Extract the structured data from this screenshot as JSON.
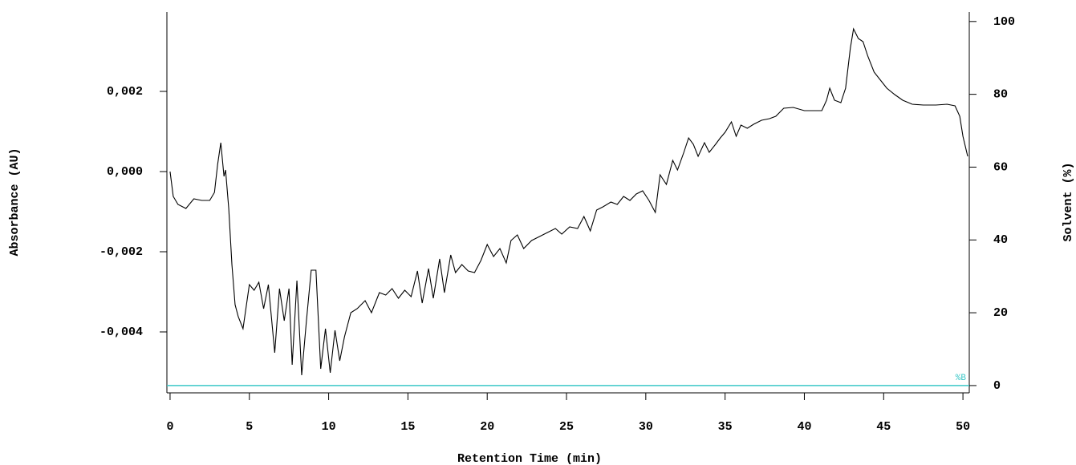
{
  "chart_data": {
    "type": "line",
    "xlabel": "Retention Time (min)",
    "ylabel": "Absorbance (AU)",
    "y2label": "Solvent (%)",
    "xlim": [
      -0.2,
      50.4
    ],
    "xticks": [
      0,
      5,
      10,
      15,
      20,
      25,
      30,
      35,
      40,
      45,
      50
    ],
    "ylim": [
      -0.00552,
      0.00398
    ],
    "yticks": [
      {
        "value": -0.004,
        "label": "-0,004"
      },
      {
        "value": -0.002,
        "label": "-0,002"
      },
      {
        "value": 0,
        "label": "0,000"
      },
      {
        "value": 0.002,
        "label": "0,002"
      }
    ],
    "y2lim": [
      -2,
      102.6
    ],
    "y2ticks": [
      0,
      20,
      40,
      60,
      80,
      100
    ],
    "grid": false,
    "series": [
      {
        "color": "#000000",
        "x": [
          0,
          0.2,
          0.5,
          1.0,
          1.5,
          2.0,
          2.5,
          2.8,
          3.0,
          3.2,
          3.4,
          3.5,
          3.7,
          3.9,
          4.1,
          4.3,
          4.6,
          5.0,
          5.3,
          5.6,
          5.9,
          6.2,
          6.6,
          6.9,
          7.2,
          7.5,
          7.7,
          8.0,
          8.3,
          8.6,
          8.9,
          9.2,
          9.5,
          9.8,
          10.1,
          10.4,
          10.7,
          11.0,
          11.4,
          11.8,
          12.3,
          12.7,
          13.2,
          13.6,
          14.0,
          14.4,
          14.8,
          15.2,
          15.6,
          15.9,
          16.3,
          16.6,
          17.0,
          17.3,
          17.7,
          18.0,
          18.4,
          18.8,
          19.2,
          19.6,
          20.0,
          20.4,
          20.8,
          21.2,
          21.5,
          21.9,
          22.3,
          22.8,
          23.3,
          23.8,
          24.3,
          24.7,
          25.2,
          25.7,
          26.1,
          26.5,
          26.9,
          27.3,
          27.8,
          28.2,
          28.6,
          29.0,
          29.4,
          29.8,
          30.2,
          30.6,
          30.9,
          31.3,
          31.7,
          32.0,
          32.4,
          32.7,
          33.0,
          33.3,
          33.7,
          34.0,
          34.4,
          34.7,
          35.0,
          35.4,
          35.7,
          36.0,
          36.4,
          36.8,
          37.3,
          37.8,
          38.2,
          38.7,
          39.3,
          40.0,
          40.6,
          41.1,
          41.4,
          41.6,
          41.9,
          42.3,
          42.6,
          42.9,
          43.1,
          43.4,
          43.7,
          44.0,
          44.4,
          44.8,
          45.2,
          45.7,
          46.2,
          46.8,
          47.5,
          48.3,
          49.0,
          49.5,
          49.8,
          50.0,
          50.3
        ],
        "values": [
          0,
          -0.00062,
          -0.00082,
          -0.00092,
          -0.00068,
          -0.00072,
          -0.00072,
          -0.00052,
          0.00018,
          0.00072,
          -0.00012,
          4e-05,
          -0.00092,
          -0.00232,
          -0.00332,
          -0.00362,
          -0.00392,
          -0.00282,
          -0.00296,
          -0.00276,
          -0.00342,
          -0.00282,
          -0.00452,
          -0.00292,
          -0.00372,
          -0.00292,
          -0.00482,
          -0.00272,
          -0.00508,
          -0.00372,
          -0.00246,
          -0.00246,
          -0.00492,
          -0.00392,
          -0.00502,
          -0.00396,
          -0.00472,
          -0.00412,
          -0.00352,
          -0.00342,
          -0.00322,
          -0.00352,
          -0.00302,
          -0.00308,
          -0.00292,
          -0.00316,
          -0.00296,
          -0.00312,
          -0.00248,
          -0.00328,
          -0.00242,
          -0.00316,
          -0.00218,
          -0.00302,
          -0.00208,
          -0.00252,
          -0.00232,
          -0.00248,
          -0.00252,
          -0.00222,
          -0.00182,
          -0.00212,
          -0.00192,
          -0.00228,
          -0.00172,
          -0.00158,
          -0.00192,
          -0.00172,
          -0.00162,
          -0.00152,
          -0.00142,
          -0.00156,
          -0.00138,
          -0.00142,
          -0.00112,
          -0.00148,
          -0.00096,
          -0.00088,
          -0.00076,
          -0.00082,
          -0.00062,
          -0.00072,
          -0.00056,
          -0.00048,
          -0.00072,
          -0.00102,
          -8e-05,
          -0.00032,
          0.00028,
          4e-05,
          0.00048,
          0.00084,
          0.00068,
          0.00038,
          0.00072,
          0.00048,
          0.00068,
          0.00084,
          0.00098,
          0.00124,
          0.00088,
          0.00116,
          0.00108,
          0.00118,
          0.00128,
          0.00132,
          0.00138,
          0.00158,
          0.0016,
          0.00152,
          0.00152,
          0.00152,
          0.00178,
          0.00208,
          0.00178,
          0.00172,
          0.00208,
          0.00308,
          0.00356,
          0.00332,
          0.00324,
          0.00288,
          0.00248,
          0.00228,
          0.00208,
          0.00192,
          0.00178,
          0.00168,
          0.00166,
          0.00166,
          0.00168,
          0.00164,
          0.00138,
          0.00088,
          0.00038
        ]
      },
      {
        "name": "%B",
        "color": "#3cc8c8",
        "axis": "y2",
        "x": [
          -0.2,
          50.4
        ],
        "values": [
          0,
          0
        ]
      }
    ]
  }
}
